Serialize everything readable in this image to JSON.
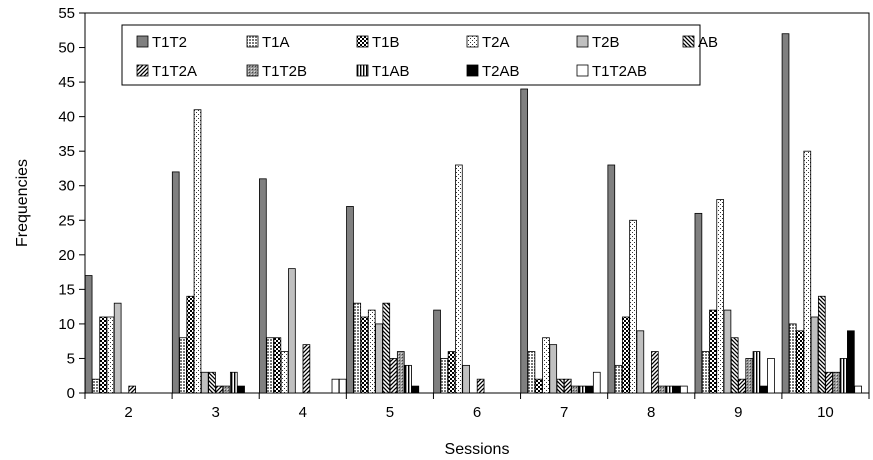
{
  "chart_data": {
    "type": "bar",
    "xlabel": "Sessions",
    "ylabel": "Frequencies",
    "ylim": [
      0,
      55
    ],
    "yticks": [
      0,
      5,
      10,
      15,
      20,
      25,
      30,
      35,
      40,
      45,
      50,
      55
    ],
    "grid": false,
    "legend_position": "top",
    "categories": [
      "2",
      "3",
      "4",
      "5",
      "6",
      "7",
      "8",
      "9",
      "10"
    ],
    "series": [
      {
        "name": "T1T2",
        "pattern": "solid-dark-gray",
        "values": [
          17,
          32,
          31,
          27,
          12,
          44,
          33,
          26,
          52
        ]
      },
      {
        "name": "T1A",
        "pattern": "fine-dots",
        "values": [
          2,
          8,
          8,
          13,
          5,
          6,
          4,
          6,
          10
        ]
      },
      {
        "name": "T1B",
        "pattern": "checker",
        "values": [
          11,
          14,
          8,
          11,
          6,
          2,
          11,
          12,
          9
        ]
      },
      {
        "name": "T2A",
        "pattern": "sparse-dots",
        "values": [
          11,
          41,
          6,
          12,
          33,
          8,
          25,
          28,
          35
        ]
      },
      {
        "name": "T2B",
        "pattern": "solid-light-gray",
        "values": [
          13,
          3,
          18,
          10,
          4,
          7,
          9,
          12,
          11
        ]
      },
      {
        "name": "AB",
        "pattern": "backslash-hatch",
        "values": [
          0,
          3,
          0,
          13,
          0,
          2,
          0,
          8,
          14
        ]
      },
      {
        "name": "T1T2A",
        "pattern": "slash-hatch",
        "values": [
          1,
          1,
          7,
          5,
          2,
          2,
          6,
          2,
          3
        ]
      },
      {
        "name": "T1T2B",
        "pattern": "cross-hatch",
        "values": [
          0,
          1,
          0,
          6,
          0,
          1,
          1,
          5,
          3
        ]
      },
      {
        "name": "T1AB",
        "pattern": "vertical-lines",
        "values": [
          0,
          3,
          0,
          4,
          0,
          1,
          1,
          6,
          5
        ]
      },
      {
        "name": "T2AB",
        "pattern": "solid-black",
        "values": [
          0,
          1,
          0,
          1,
          0,
          1,
          1,
          1,
          9
        ]
      },
      {
        "name": "T1T2AB",
        "pattern": "white",
        "values": [
          0,
          0,
          2,
          0,
          0,
          3,
          1,
          5,
          1
        ]
      },
      {
        "name": "",
        "pattern": "white",
        "values": [
          0,
          0,
          2,
          0,
          0,
          0,
          0,
          0,
          0
        ]
      }
    ]
  }
}
